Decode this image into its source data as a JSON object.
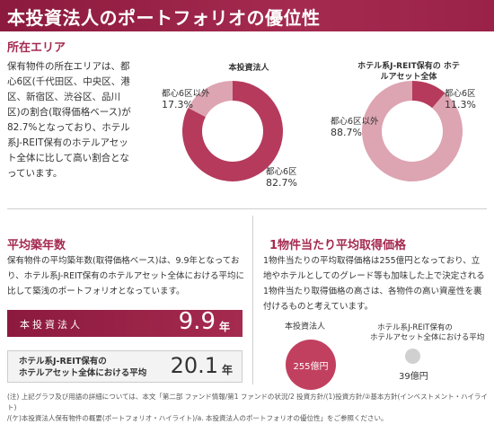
{
  "header": {
    "title": "本投資法人のポートフォリオの優位性"
  },
  "area": {
    "heading": "所在エリア",
    "body": "保有物件の所在エリアは、都心6区(千代田区、中央区、港区、新宿区、渋谷区、品川区)の割合(取得価格ベース)が82.7%となっており、ホテル系J-REIT保有のホテルアセット全体に比して高い割合となっています。",
    "chart_data": [
      {
        "type": "pie",
        "title": "本投資法人",
        "categories": [
          "都心6区",
          "都心6区以外"
        ],
        "values": [
          82.7,
          17.3
        ],
        "labels": [
          "82.7%",
          "17.3%"
        ],
        "colors": [
          "#b53a5c",
          "#dda4b2"
        ]
      },
      {
        "type": "pie",
        "title": "ホテル系J-REIT保有の ホテルアセット全体",
        "categories": [
          "都心6区",
          "都心6区以外"
        ],
        "values": [
          11.3,
          88.7
        ],
        "labels": [
          "11.3%",
          "88.7%"
        ],
        "colors": [
          "#b53a5c",
          "#dda4b2"
        ]
      }
    ]
  },
  "age": {
    "heading": "平均築年数",
    "body": "保有物件の平均築年数(取得価格ベース)は、9.9年となっており、ホテル系J-REIT保有のホテルアセット全体における平均に比して築浅のポートフォリオとなっています。",
    "ours_label": "本投資法人",
    "ours_value": "9.9",
    "unit": "年",
    "other_label_1": "ホテル系J-REIT保有の",
    "other_label_2": "ホテルアセット全体における平均",
    "other_value": "20.1"
  },
  "price": {
    "heading": "1物件当たり平均取得価格",
    "body": "1物件当たりの平均取得価格は255億円となっており、立地やホテルとしてのグレード等も加味した上で決定される1物件当たり取得価格の高さは、各物件の高い資産性を裏付けるものと考えています。",
    "ours_label": "本投資法人",
    "ours_value": "255億円",
    "other_label_1": "ホテル系J-REIT保有の",
    "other_label_2": "ホテルアセット全体における平均",
    "other_value": "39億円"
  },
  "note": {
    "line1": "(注) 上記グラフ及び用語の詳細については、本文「第二部 ファンド情報/第1 ファンドの状況/2 投資方針/(1)投資方針/②基本方針(インベストメント・ハイライト)",
    "line2": "/(ケ)本投資法人保有物件の概要(ポートフォリオ・ハイライト)/a. 本投資法人のポートフォリオの優位性」をご参照ください。"
  }
}
